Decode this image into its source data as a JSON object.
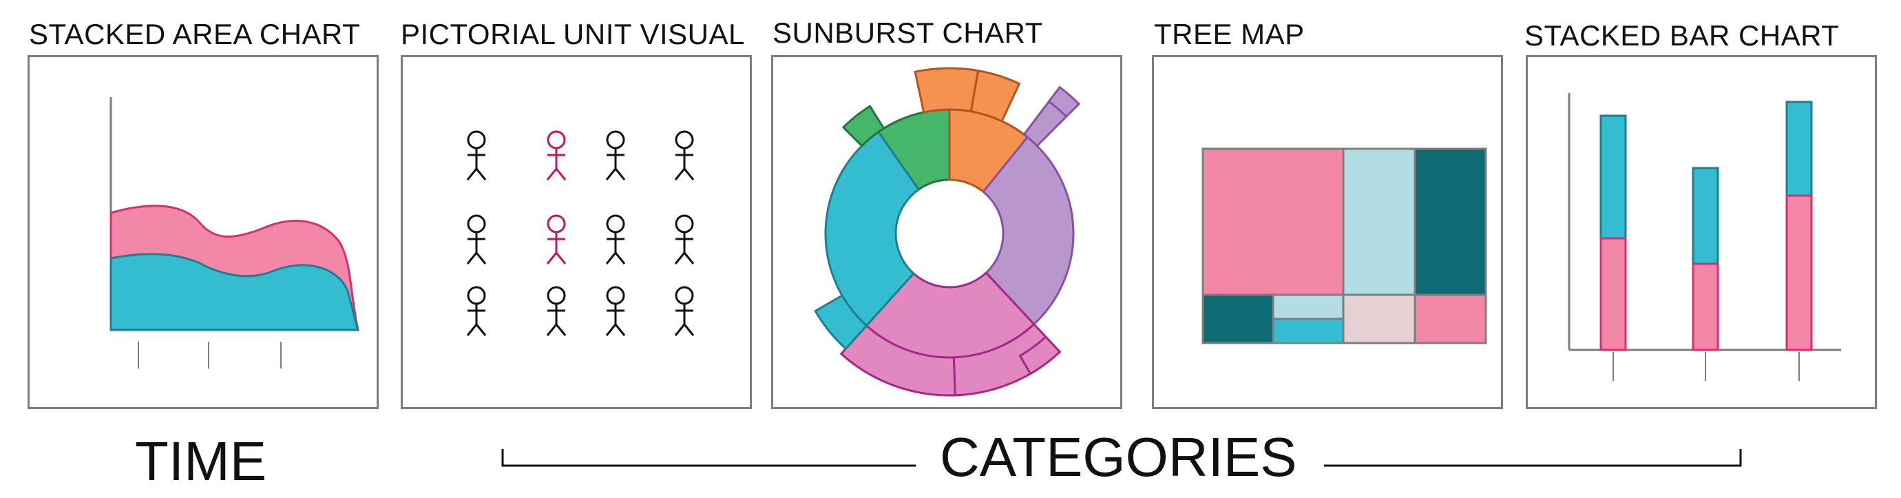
{
  "panels": [
    {
      "title": "STACKED AREA CHART"
    },
    {
      "title": "PICTORIAL UNIT VISUAL"
    },
    {
      "title": "SUNBURST CHART"
    },
    {
      "title": "TREE MAP"
    },
    {
      "title": "STACKED BAR CHART"
    }
  ],
  "footer": {
    "time_label": "TIME",
    "categories_label": "CATEGORIES"
  },
  "colors": {
    "pink": "#f287a8",
    "pink_stroke": "#d62f73",
    "teal": "#34bcd0",
    "teal_stroke": "#1e7f8d",
    "orange": "#f5924f",
    "orange_stroke": "#b6541e",
    "green": "#46b66b",
    "green_stroke": "#23753c",
    "lavender": "#b996cb",
    "lavender_stroke": "#8a4fa6",
    "magenta": "#e088bf",
    "magenta_stroke": "#a5278a",
    "light_blue": "#b3dde5",
    "dark_teal": "#0f6b73",
    "light_pink": "#e6d1d5",
    "crimson": "#c2185b",
    "border": "#7d7d7d"
  },
  "pictogram": {
    "highlighted_units": [
      1,
      5
    ]
  }
}
